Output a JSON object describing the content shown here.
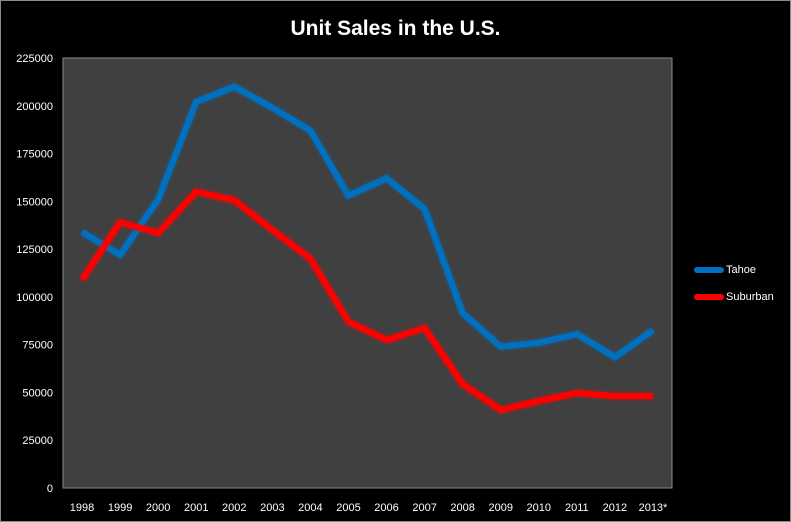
{
  "chart_data": {
    "type": "line",
    "title": "Unit Sales in the U.S.",
    "categories": [
      "1998",
      "1999",
      "2000",
      "2001",
      "2002",
      "2003",
      "2004",
      "2005",
      "2006",
      "2007",
      "2008",
      "2009",
      "2010",
      "2011",
      "2012",
      "2013*"
    ],
    "series": [
      {
        "name": "Tahoe",
        "color": "#0070C0",
        "values": [
          134000,
          122000,
          151000,
          202000,
          210000,
          199000,
          187000,
          153000,
          162000,
          146000,
          91500,
          74000,
          76000,
          80500,
          68500,
          82600
        ]
      },
      {
        "name": "Suburban",
        "color": "#FF0000",
        "values": [
          109000,
          139000,
          133500,
          155000,
          150600,
          135000,
          120000,
          87000,
          77400,
          83700,
          54400,
          40800,
          45500,
          49700,
          48100,
          48000
        ]
      }
    ],
    "yticks": [
      "0",
      "25000",
      "50000",
      "75000",
      "100000",
      "125000",
      "150000",
      "175000",
      "200000",
      "225000"
    ],
    "ylim": [
      0,
      225000
    ],
    "grid": false,
    "legend": "right",
    "plot_background": "#404040",
    "background": "#000000"
  }
}
